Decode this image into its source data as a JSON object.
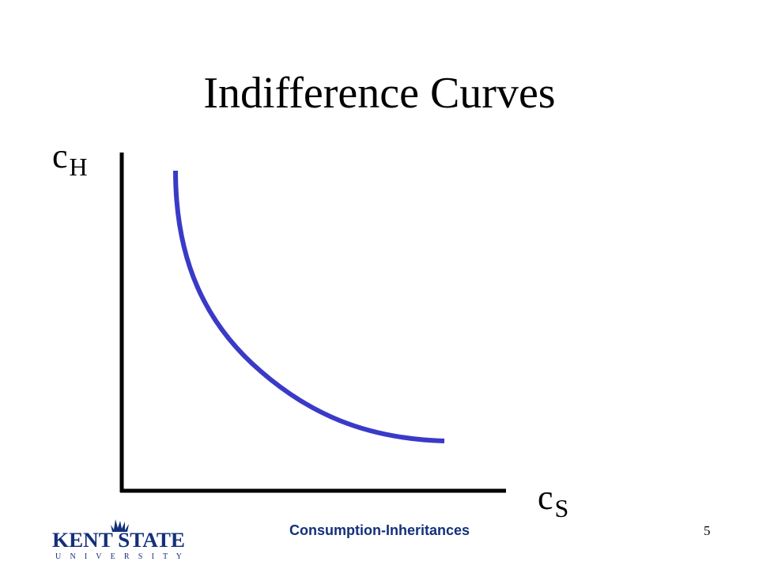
{
  "slide": {
    "title": "Indifference Curves",
    "footer_title": "Consumption-Inheritances",
    "page_number": "5"
  },
  "axes": {
    "y_label_main": "c",
    "y_label_sub": "H",
    "x_label_main": "c",
    "x_label_sub": "S"
  },
  "logo": {
    "line1": "KENT STATE",
    "line2": "U N I V E R S I T Y"
  },
  "colors": {
    "curve": "#3a3ac8",
    "axis": "#000000",
    "footer_text": "#14307a",
    "logo": "#14307a"
  }
}
